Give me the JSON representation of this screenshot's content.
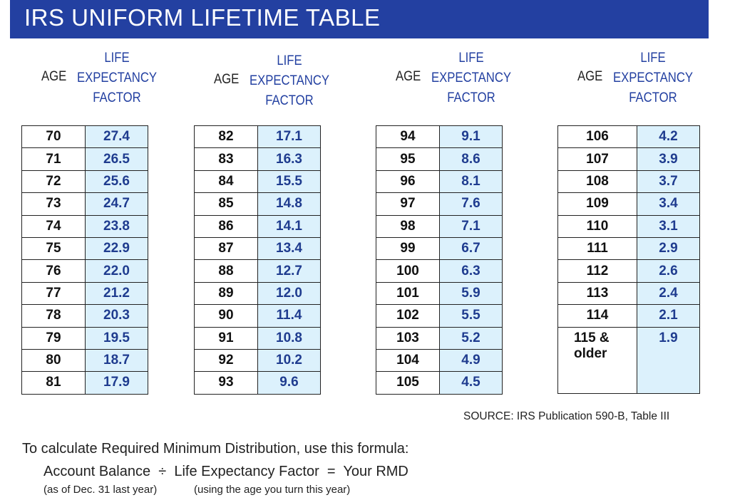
{
  "header": {
    "title": "IRS UNIFORM LIFETIME TABLE"
  },
  "column_headers": {
    "age": "AGE",
    "factor_line1": "LIFE",
    "factor_line2": "EXPECTANCY",
    "factor_line3": "FACTOR"
  },
  "colors": {
    "banner": "#2340a1",
    "factor_fill": "#dcf1fc",
    "factor_text": "#1f3c8f"
  },
  "tables": [
    {
      "rows": [
        {
          "age": "70",
          "factor": "27.4"
        },
        {
          "age": "71",
          "factor": "26.5"
        },
        {
          "age": "72",
          "factor": "25.6"
        },
        {
          "age": "73",
          "factor": "24.7"
        },
        {
          "age": "74",
          "factor": "23.8"
        },
        {
          "age": "75",
          "factor": "22.9"
        },
        {
          "age": "76",
          "factor": "22.0"
        },
        {
          "age": "77",
          "factor": "21.2"
        },
        {
          "age": "78",
          "factor": "20.3"
        },
        {
          "age": "79",
          "factor": "19.5"
        },
        {
          "age": "80",
          "factor": "18.7"
        },
        {
          "age": "81",
          "factor": "17.9"
        }
      ]
    },
    {
      "rows": [
        {
          "age": "82",
          "factor": "17.1"
        },
        {
          "age": "83",
          "factor": "16.3"
        },
        {
          "age": "84",
          "factor": "15.5"
        },
        {
          "age": "85",
          "factor": "14.8"
        },
        {
          "age": "86",
          "factor": "14.1"
        },
        {
          "age": "87",
          "factor": "13.4"
        },
        {
          "age": "88",
          "factor": "12.7"
        },
        {
          "age": "89",
          "factor": "12.0"
        },
        {
          "age": "90",
          "factor": "11.4"
        },
        {
          "age": "91",
          "factor": "10.8"
        },
        {
          "age": "92",
          "factor": "10.2"
        },
        {
          "age": "93",
          "factor": "9.6"
        }
      ]
    },
    {
      "rows": [
        {
          "age": "94",
          "factor": "9.1"
        },
        {
          "age": "95",
          "factor": "8.6"
        },
        {
          "age": "96",
          "factor": "8.1"
        },
        {
          "age": "97",
          "factor": "7.6"
        },
        {
          "age": "98",
          "factor": "7.1"
        },
        {
          "age": "99",
          "factor": "6.7"
        },
        {
          "age": "100",
          "factor": "6.3"
        },
        {
          "age": "101",
          "factor": "5.9"
        },
        {
          "age": "102",
          "factor": "5.5"
        },
        {
          "age": "103",
          "factor": "5.2"
        },
        {
          "age": "104",
          "factor": "4.9"
        },
        {
          "age": "105",
          "factor": "4.5"
        }
      ]
    },
    {
      "rows": [
        {
          "age": "106",
          "factor": "4.2"
        },
        {
          "age": "107",
          "factor": "3.9"
        },
        {
          "age": "108",
          "factor": "3.7"
        },
        {
          "age": "109",
          "factor": "3.4"
        },
        {
          "age": "110",
          "factor": "3.1"
        },
        {
          "age": "111",
          "factor": "2.9"
        },
        {
          "age": "112",
          "factor": "2.6"
        },
        {
          "age": "113",
          "factor": "2.4"
        },
        {
          "age": "114",
          "factor": "2.1"
        }
      ],
      "last_row": {
        "age_line1": "115 &",
        "age_line2": "older",
        "factor": "1.9"
      }
    }
  ],
  "source": "SOURCE: IRS Publication 590-B, Table III",
  "formula": {
    "intro": "To calculate Required Minimum Distribution, use this formula:",
    "term1": "Account Balance",
    "operator1": "÷",
    "term2": "Life Expectancy Factor",
    "operator2": "=",
    "result": "Your RMD",
    "note1": "(as of Dec. 31 last year)",
    "note2": "(using the age you turn this year)"
  }
}
